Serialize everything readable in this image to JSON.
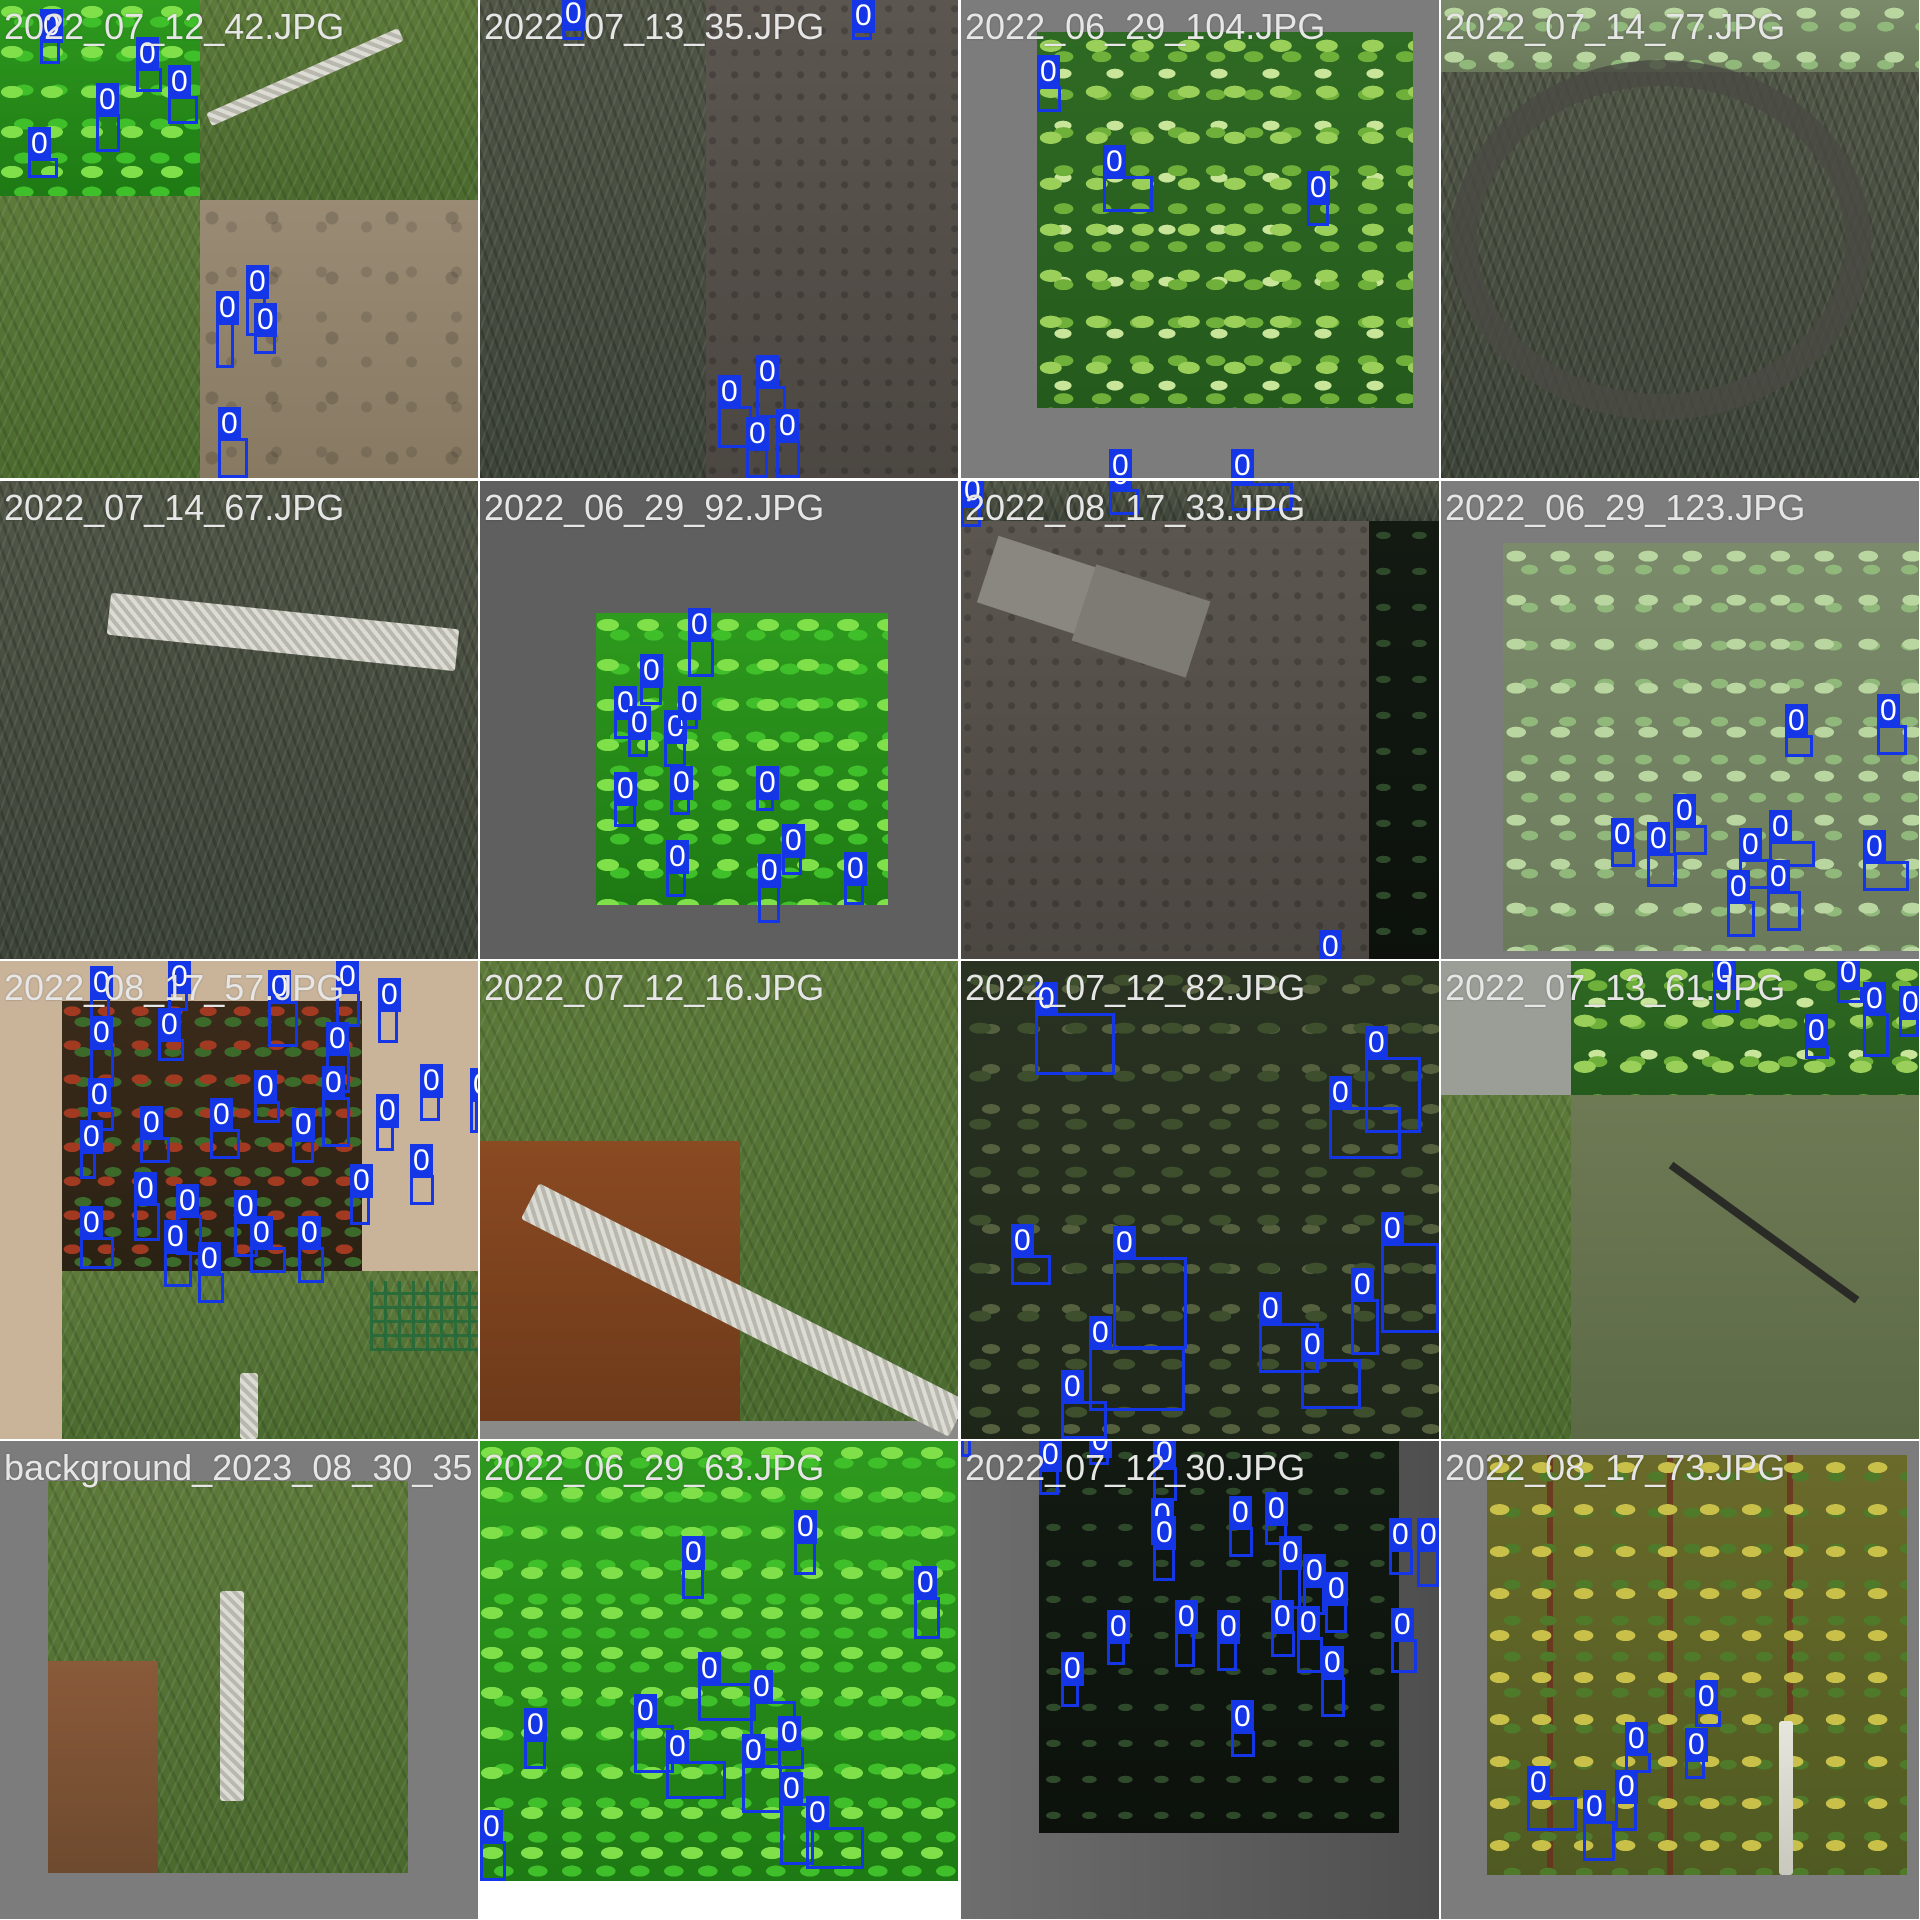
{
  "box_label": "0",
  "colors": {
    "box": "#1536e6",
    "label_text": "#e6e6e6",
    "pad_gray": "#7c7c7c"
  },
  "tiles": [
    {
      "label": "2022_07_12_42.JPG"
    },
    {
      "label": "2022_07_13_35.JPG"
    },
    {
      "label": "2022_06_29_104.JPG"
    },
    {
      "label": "2022_07_14_77.JPG"
    },
    {
      "label": "2022_07_14_67.JPG"
    },
    {
      "label": "2022_06_29_92.JPG"
    },
    {
      "label": "2022_08_17_33.JPG"
    },
    {
      "label": "2022_06_29_123.JPG"
    },
    {
      "label": "2022_08_17_57.JPG"
    },
    {
      "label": "2022_07_12_16.JPG"
    },
    {
      "label": "2022_07_12_82.JPG"
    },
    {
      "label": "2022_07_13_61.JPG"
    },
    {
      "label": "background_2023_08_30_35"
    },
    {
      "label": "2022_06_29_63.JPG"
    },
    {
      "label": "2022_07_12_30.JPG"
    },
    {
      "label": "2022_08_17_73.JPG"
    }
  ]
}
